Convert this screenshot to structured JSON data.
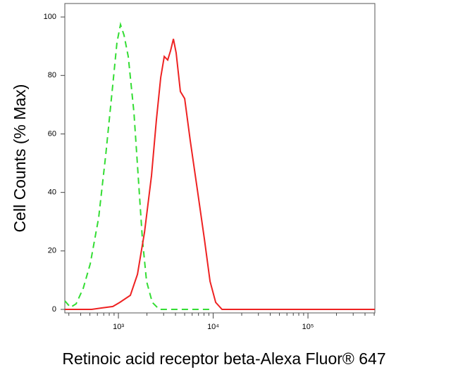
{
  "chart_data": {
    "type": "line",
    "log_x": true,
    "xlabel": "Retinoic acid receptor beta-Alexa Fluor® 647",
    "ylabel": "Cell Counts (% Max)",
    "xlim": [
      272,
      508000
    ],
    "ylim": [
      -1.2,
      104.6
    ],
    "xticks": [
      {
        "value": 1000,
        "label": "10³"
      },
      {
        "value": 10000,
        "label": "10⁴"
      },
      {
        "value": 100000,
        "label": "10⁵"
      }
    ],
    "xminorticks": [
      300,
      400,
      500,
      600,
      700,
      800,
      900,
      2000,
      3000,
      4000,
      5000,
      6000,
      7000,
      8000,
      9000,
      20000,
      30000,
      40000,
      50000,
      60000,
      70000,
      80000,
      90000,
      200000,
      300000,
      400000,
      500000
    ],
    "yticks": [
      0,
      20,
      40,
      60,
      80,
      100
    ],
    "series": [
      {
        "color": "#33dd33",
        "dashed": true,
        "x": [
          272,
          312,
          358,
          425,
          505,
          619,
          735,
          873,
          966,
          1052,
          1146,
          1270,
          1458,
          1615,
          1790,
          1983,
          2275,
          2698,
          3430,
          9500
        ],
        "values": [
          2.9,
          0.7,
          1.9,
          7.2,
          15.6,
          31.3,
          52.9,
          76.9,
          91.3,
          97.4,
          93.8,
          86.5,
          67.3,
          45.7,
          24.0,
          9.6,
          2.4,
          0,
          0,
          0
        ]
      },
      {
        "color": "#ee2222",
        "dashed": false,
        "x": [
          272,
          522,
          674,
          873,
          1035,
          1337,
          1588,
          1884,
          2235,
          2519,
          2793,
          3043,
          3314,
          3551,
          3802,
          4070,
          4510,
          5000,
          5730,
          6805,
          8075,
          9265,
          10620,
          12390,
          16000,
          508000
        ],
        "values": [
          0,
          0,
          0.5,
          1,
          2.4,
          4.8,
          12,
          26.4,
          45.7,
          64.9,
          79.3,
          86.5,
          85.3,
          88.5,
          92.5,
          87.7,
          74.5,
          72.1,
          57.7,
          40.9,
          24,
          9.6,
          2.4,
          0,
          0,
          0
        ]
      }
    ]
  }
}
